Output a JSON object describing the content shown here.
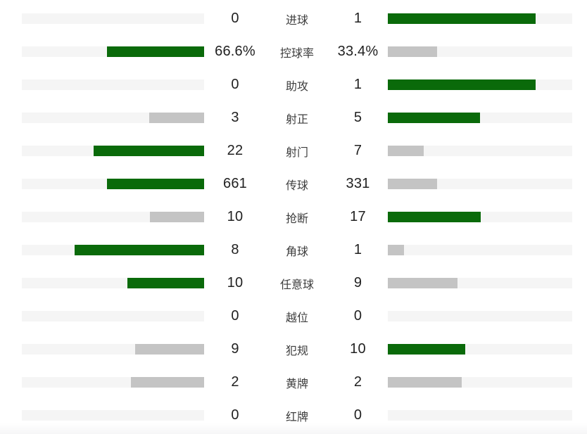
{
  "colors": {
    "leading_bar": "#0a6a0a",
    "trailing_bar": "#c4c4c4",
    "bar_track": "#f5f5f5",
    "value_text": "#212121",
    "label_text": "#3d3d3d"
  },
  "chart_data": {
    "type": "bar",
    "layout": "mirrored horizontal comparison, labels centered, bars grow outward-to-center tracks, max bar = 80% of track",
    "legend_position": "none",
    "grid": false,
    "categories": [
      "进球",
      "控球率",
      "助攻",
      "射正",
      "射门",
      "传球",
      "抢断",
      "角球",
      "任意球",
      "越位",
      "犯规",
      "黄牌",
      "红牌"
    ],
    "series": [
      {
        "name": "left",
        "values": [
          0,
          66.6,
          0,
          3,
          22,
          661,
          10,
          8,
          10,
          0,
          9,
          2,
          0
        ]
      },
      {
        "name": "right",
        "values": [
          1,
          33.4,
          1,
          5,
          7,
          331,
          17,
          1,
          9,
          0,
          10,
          2,
          0
        ]
      }
    ],
    "rows": [
      {
        "label": "进球",
        "home": "0",
        "away": "1",
        "home_pct": 0,
        "away_pct": 80,
        "home_style": "none",
        "away_style": "green"
      },
      {
        "label": "控球率",
        "home": "66.6%",
        "away": "33.4%",
        "home_pct": 53.3,
        "away_pct": 26.7,
        "home_style": "green",
        "away_style": "gray"
      },
      {
        "label": "助攻",
        "home": "0",
        "away": "1",
        "home_pct": 0,
        "away_pct": 80,
        "home_style": "none",
        "away_style": "green"
      },
      {
        "label": "射正",
        "home": "3",
        "away": "5",
        "home_pct": 30,
        "away_pct": 50,
        "home_style": "gray",
        "away_style": "green"
      },
      {
        "label": "射门",
        "home": "22",
        "away": "7",
        "home_pct": 60.7,
        "away_pct": 19.3,
        "home_style": "green",
        "away_style": "gray"
      },
      {
        "label": "传球",
        "home": "661",
        "away": "331",
        "home_pct": 53.3,
        "away_pct": 26.7,
        "home_style": "green",
        "away_style": "gray"
      },
      {
        "label": "抢断",
        "home": "10",
        "away": "17",
        "home_pct": 29.6,
        "away_pct": 50.4,
        "home_style": "gray",
        "away_style": "green"
      },
      {
        "label": "角球",
        "home": "8",
        "away": "1",
        "home_pct": 71.1,
        "away_pct": 8.9,
        "home_style": "green",
        "away_style": "gray"
      },
      {
        "label": "任意球",
        "home": "10",
        "away": "9",
        "home_pct": 42.1,
        "away_pct": 37.9,
        "home_style": "green",
        "away_style": "gray"
      },
      {
        "label": "越位",
        "home": "0",
        "away": "0",
        "home_pct": 0,
        "away_pct": 0,
        "home_style": "none",
        "away_style": "none"
      },
      {
        "label": "犯规",
        "home": "9",
        "away": "10",
        "home_pct": 37.9,
        "away_pct": 42.1,
        "home_style": "gray",
        "away_style": "green"
      },
      {
        "label": "黄牌",
        "home": "2",
        "away": "2",
        "home_pct": 40,
        "away_pct": 40,
        "home_style": "gray",
        "away_style": "gray"
      },
      {
        "label": "红牌",
        "home": "0",
        "away": "0",
        "home_pct": 0,
        "away_pct": 0,
        "home_style": "none",
        "away_style": "none"
      }
    ]
  }
}
